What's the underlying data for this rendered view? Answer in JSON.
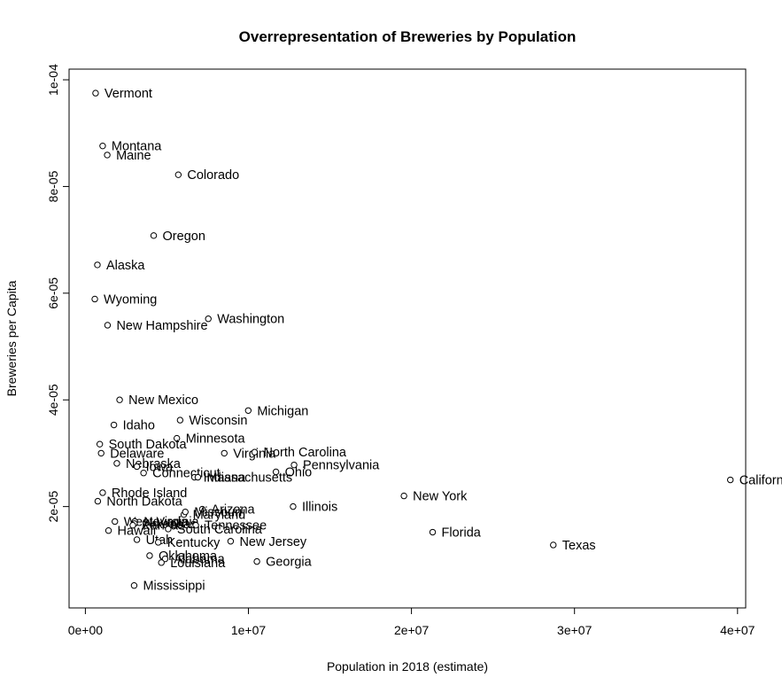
{
  "chart_data": {
    "type": "scatter",
    "title": "Overrepresentation of Breweries by Population",
    "xlabel": "Population in 2018 (estimate)",
    "ylabel": "Breweries per Capita",
    "xlim": [
      -1000000,
      40500000
    ],
    "ylim": [
      1e-06,
      0.000102
    ],
    "xticks": [
      0,
      10000000,
      20000000,
      30000000,
      40000000
    ],
    "xtick_labels": [
      "0e+00",
      "1e+07",
      "2e+07",
      "3e+07",
      "4e+07"
    ],
    "yticks": [
      2e-05,
      4e-05,
      6e-05,
      8e-05,
      0.0001
    ],
    "ytick_labels": [
      "2e-05",
      "4e-05",
      "6e-05",
      "8e-05",
      "1e-04"
    ],
    "grid": false,
    "points": [
      {
        "label": "Vermont",
        "x": 626000,
        "y": 9.75e-05
      },
      {
        "label": "Montana",
        "x": 1060000,
        "y": 8.76e-05
      },
      {
        "label": "Maine",
        "x": 1340000,
        "y": 8.59e-05
      },
      {
        "label": "Colorado",
        "x": 5700000,
        "y": 8.22e-05
      },
      {
        "label": "Oregon",
        "x": 4190000,
        "y": 7.08e-05
      },
      {
        "label": "Alaska",
        "x": 737000,
        "y": 6.53e-05
      },
      {
        "label": "Wyoming",
        "x": 578000,
        "y": 5.89e-05
      },
      {
        "label": "New Hampshire",
        "x": 1360000,
        "y": 5.4e-05
      },
      {
        "label": "Washington",
        "x": 7540000,
        "y": 5.52e-05
      },
      {
        "label": "New Mexico",
        "x": 2100000,
        "y": 4e-05
      },
      {
        "label": "Michigan",
        "x": 9990000,
        "y": 3.8e-05
      },
      {
        "label": "Wisconsin",
        "x": 5810000,
        "y": 3.62e-05
      },
      {
        "label": "Idaho",
        "x": 1750000,
        "y": 3.53e-05
      },
      {
        "label": "Minnesota",
        "x": 5610000,
        "y": 3.28e-05
      },
      {
        "label": "South Dakota",
        "x": 882000,
        "y": 3.17e-05
      },
      {
        "label": "Delaware",
        "x": 967000,
        "y": 3e-05
      },
      {
        "label": "Virginia",
        "x": 8520000,
        "y": 3e-05
      },
      {
        "label": "North Carolina",
        "x": 10380000,
        "y": 3.02e-05
      },
      {
        "label": "Pennsylvania",
        "x": 12800000,
        "y": 2.78e-05
      },
      {
        "label": "Nebraska",
        "x": 1930000,
        "y": 2.81e-05
      },
      {
        "label": "Iowa",
        "x": 3160000,
        "y": 2.75e-05
      },
      {
        "label": "Connecticut",
        "x": 3570000,
        "y": 2.63e-05
      },
      {
        "label": "Ohio",
        "x": 11690000,
        "y": 2.65e-05
      },
      {
        "label": "Indiana",
        "x": 6690000,
        "y": 2.55e-05
      },
      {
        "label": "Massachusetts",
        "x": 6900000,
        "y": 2.55e-05
      },
      {
        "label": "California",
        "x": 39560000,
        "y": 2.5e-05
      },
      {
        "label": "Rhode Island",
        "x": 1060000,
        "y": 2.26e-05
      },
      {
        "label": "North Dakota",
        "x": 760000,
        "y": 2.1e-05
      },
      {
        "label": "New York",
        "x": 19540000,
        "y": 2.2e-05
      },
      {
        "label": "Illinois",
        "x": 12740000,
        "y": 2e-05
      },
      {
        "label": "Arizona",
        "x": 7170000,
        "y": 1.95e-05
      },
      {
        "label": "Maryland",
        "x": 6040000,
        "y": 1.85e-05
      },
      {
        "label": "Missouri",
        "x": 6130000,
        "y": 1.9e-05
      },
      {
        "label": "West Virginia",
        "x": 1810000,
        "y": 1.72e-05
      },
      {
        "label": "Nevada",
        "x": 3030000,
        "y": 1.72e-05
      },
      {
        "label": "Arkansas",
        "x": 3010000,
        "y": 1.68e-05
      },
      {
        "label": "Kansas",
        "x": 2910000,
        "y": 1.65e-05
      },
      {
        "label": "Tennessee",
        "x": 6770000,
        "y": 1.65e-05
      },
      {
        "label": "South Carolina",
        "x": 5080000,
        "y": 1.58e-05
      },
      {
        "label": "Hawaii",
        "x": 1420000,
        "y": 1.55e-05
      },
      {
        "label": "Florida",
        "x": 21300000,
        "y": 1.52e-05
      },
      {
        "label": "Utah",
        "x": 3160000,
        "y": 1.38e-05
      },
      {
        "label": "Kentucky",
        "x": 4470000,
        "y": 1.33e-05
      },
      {
        "label": "New Jersey",
        "x": 8910000,
        "y": 1.35e-05
      },
      {
        "label": "Texas",
        "x": 28700000,
        "y": 1.28e-05
      },
      {
        "label": "Oklahoma",
        "x": 3940000,
        "y": 1.08e-05
      },
      {
        "label": "Alabama",
        "x": 4890000,
        "y": 1.02e-05
      },
      {
        "label": "Louisiana",
        "x": 4660000,
        "y": 9.5e-06
      },
      {
        "label": "Georgia",
        "x": 10520000,
        "y": 9.7e-06
      },
      {
        "label": "Mississippi",
        "x": 2990000,
        "y": 5.2e-06
      }
    ]
  }
}
